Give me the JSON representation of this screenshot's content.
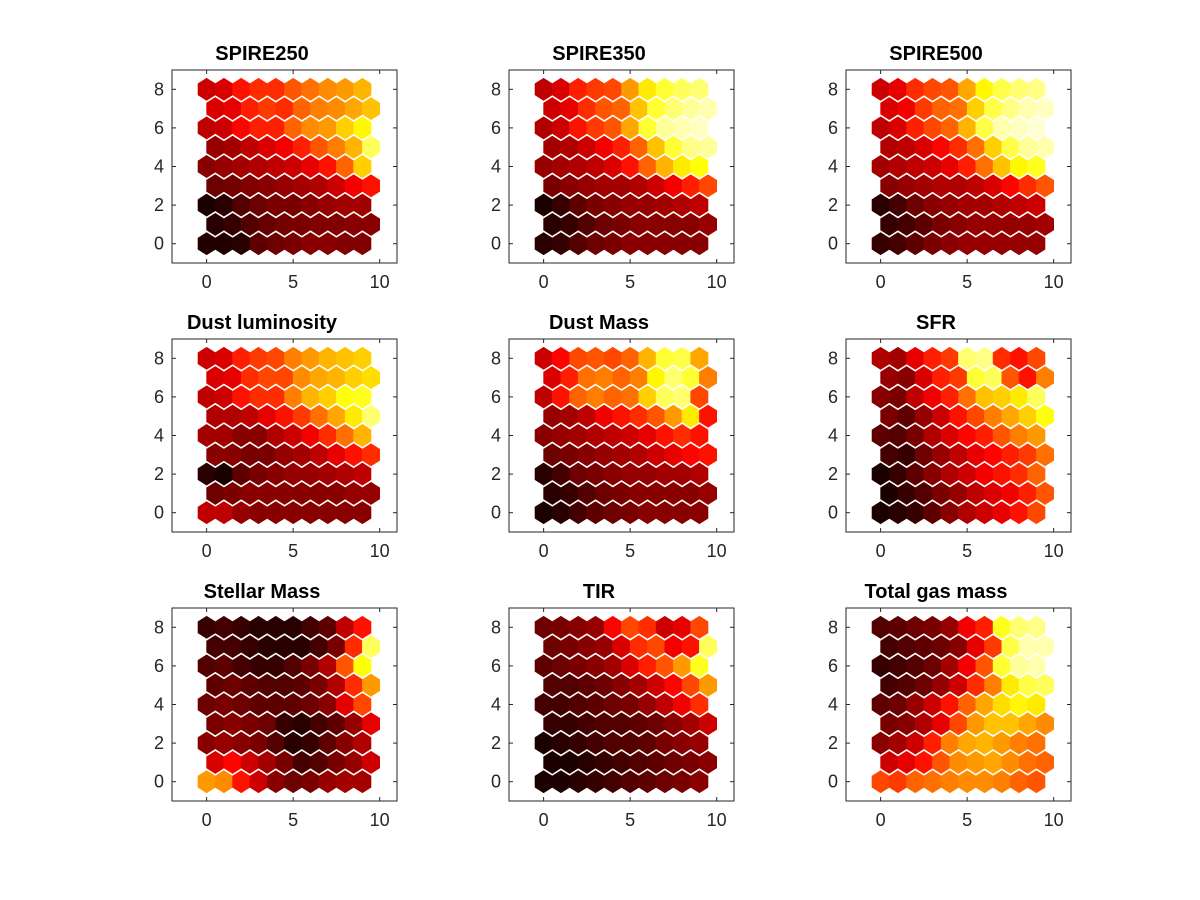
{
  "chart_data": [
    {
      "type": "heatmap",
      "title": "SPIRE250",
      "colormap": "hot",
      "xlim": [
        -2,
        11
      ],
      "ylim": [
        -1,
        9
      ],
      "xticks": [
        0,
        5,
        10
      ],
      "yticks": [
        0,
        2,
        4,
        6,
        8
      ],
      "values": [
        [
          0.05,
          0.05,
          0.06,
          0.14,
          0.16,
          0.18,
          0.2,
          0.2,
          0.19,
          0.19
        ],
        [
          0.06,
          0.08,
          0.12,
          0.15,
          0.17,
          0.18,
          0.19,
          0.19,
          0.2,
          0.2
        ],
        [
          0.04,
          0.06,
          0.12,
          0.16,
          0.18,
          0.18,
          0.2,
          0.22,
          0.24,
          0.24
        ],
        [
          0.16,
          0.17,
          0.19,
          0.2,
          0.22,
          0.24,
          0.26,
          0.3,
          0.36,
          0.4
        ],
        [
          0.2,
          0.22,
          0.24,
          0.26,
          0.28,
          0.3,
          0.34,
          0.4,
          0.52,
          0.68
        ],
        [
          0.22,
          0.24,
          0.28,
          0.32,
          0.36,
          0.42,
          0.5,
          0.56,
          0.64,
          0.84
        ],
        [
          0.28,
          0.3,
          0.38,
          0.42,
          0.42,
          0.52,
          0.58,
          0.6,
          0.68,
          0.74
        ],
        [
          0.32,
          0.34,
          0.42,
          0.46,
          0.44,
          0.52,
          0.56,
          0.58,
          0.62,
          0.66
        ],
        [
          0.3,
          0.32,
          0.4,
          0.44,
          0.44,
          0.5,
          0.54,
          0.58,
          0.6,
          0.64
        ]
      ]
    },
    {
      "type": "heatmap",
      "title": "SPIRE350",
      "colormap": "hot",
      "xlim": [
        -2,
        11
      ],
      "ylim": [
        -1,
        9
      ],
      "xticks": [
        0,
        5,
        10
      ],
      "yticks": [
        0,
        2,
        4,
        6,
        8
      ],
      "values": [
        [
          0.06,
          0.08,
          0.12,
          0.16,
          0.18,
          0.2,
          0.2,
          0.2,
          0.2,
          0.2
        ],
        [
          0.06,
          0.08,
          0.12,
          0.16,
          0.18,
          0.2,
          0.2,
          0.2,
          0.2,
          0.22
        ],
        [
          0.04,
          0.08,
          0.14,
          0.18,
          0.2,
          0.22,
          0.22,
          0.24,
          0.26,
          0.28
        ],
        [
          0.18,
          0.2,
          0.22,
          0.24,
          0.24,
          0.26,
          0.3,
          0.36,
          0.42,
          0.48
        ],
        [
          0.22,
          0.24,
          0.26,
          0.28,
          0.32,
          0.4,
          0.52,
          0.64,
          0.72,
          0.76
        ],
        [
          0.24,
          0.26,
          0.3,
          0.36,
          0.42,
          0.52,
          0.66,
          0.8,
          0.88,
          0.9
        ],
        [
          0.26,
          0.3,
          0.4,
          0.46,
          0.5,
          0.62,
          0.8,
          0.9,
          0.92,
          0.94
        ],
        [
          0.3,
          0.34,
          0.44,
          0.5,
          0.52,
          0.66,
          0.8,
          0.86,
          0.9,
          0.92
        ],
        [
          0.28,
          0.32,
          0.42,
          0.46,
          0.48,
          0.6,
          0.72,
          0.8,
          0.84,
          0.86
        ]
      ]
    },
    {
      "type": "heatmap",
      "title": "SPIRE500",
      "colormap": "hot",
      "xlim": [
        -2,
        11
      ],
      "ylim": [
        -1,
        9
      ],
      "xticks": [
        0,
        5,
        10
      ],
      "yticks": [
        0,
        2,
        4,
        6,
        8
      ],
      "values": [
        [
          0.08,
          0.1,
          0.14,
          0.18,
          0.2,
          0.22,
          0.22,
          0.22,
          0.22,
          0.22
        ],
        [
          0.08,
          0.1,
          0.14,
          0.18,
          0.2,
          0.22,
          0.22,
          0.22,
          0.22,
          0.24
        ],
        [
          0.06,
          0.1,
          0.16,
          0.2,
          0.22,
          0.24,
          0.24,
          0.26,
          0.28,
          0.3
        ],
        [
          0.2,
          0.22,
          0.24,
          0.26,
          0.26,
          0.28,
          0.32,
          0.38,
          0.44,
          0.5
        ],
        [
          0.24,
          0.26,
          0.28,
          0.3,
          0.34,
          0.42,
          0.54,
          0.66,
          0.74,
          0.78
        ],
        [
          0.26,
          0.28,
          0.32,
          0.38,
          0.44,
          0.54,
          0.68,
          0.82,
          0.9,
          0.92
        ],
        [
          0.28,
          0.32,
          0.42,
          0.48,
          0.52,
          0.64,
          0.82,
          0.92,
          0.94,
          0.96
        ],
        [
          0.32,
          0.36,
          0.46,
          0.52,
          0.54,
          0.68,
          0.82,
          0.88,
          0.92,
          0.94
        ],
        [
          0.3,
          0.34,
          0.44,
          0.48,
          0.5,
          0.62,
          0.74,
          0.82,
          0.86,
          0.88
        ]
      ]
    },
    {
      "type": "heatmap",
      "title": "Dust luminosity",
      "colormap": "hot",
      "xlim": [
        -2,
        11
      ],
      "ylim": [
        -1,
        9
      ],
      "xticks": [
        0,
        5,
        10
      ],
      "yticks": [
        0,
        2,
        4,
        6,
        8
      ],
      "values": [
        [
          0.28,
          0.28,
          0.22,
          0.2,
          0.2,
          0.2,
          0.2,
          0.2,
          0.2,
          0.2
        ],
        [
          0.16,
          0.18,
          0.2,
          0.2,
          0.2,
          0.2,
          0.2,
          0.2,
          0.22,
          0.22
        ],
        [
          0.06,
          0.04,
          0.14,
          0.18,
          0.2,
          0.22,
          0.22,
          0.24,
          0.26,
          0.28
        ],
        [
          0.2,
          0.2,
          0.18,
          0.18,
          0.22,
          0.24,
          0.28,
          0.34,
          0.4,
          0.44
        ],
        [
          0.24,
          0.24,
          0.2,
          0.2,
          0.26,
          0.3,
          0.36,
          0.44,
          0.54,
          0.64
        ],
        [
          0.26,
          0.26,
          0.28,
          0.34,
          0.4,
          0.46,
          0.54,
          0.62,
          0.72,
          0.86
        ],
        [
          0.28,
          0.3,
          0.4,
          0.44,
          0.44,
          0.56,
          0.64,
          0.68,
          0.76,
          0.78
        ],
        [
          0.32,
          0.34,
          0.44,
          0.48,
          0.48,
          0.58,
          0.62,
          0.64,
          0.68,
          0.7
        ],
        [
          0.3,
          0.32,
          0.42,
          0.46,
          0.48,
          0.56,
          0.6,
          0.64,
          0.66,
          0.68
        ]
      ]
    },
    {
      "type": "heatmap",
      "title": "Dust Mass",
      "colormap": "hot",
      "xlim": [
        -2,
        11
      ],
      "ylim": [
        -1,
        9
      ],
      "xticks": [
        0,
        5,
        10
      ],
      "yticks": [
        0,
        2,
        4,
        6,
        8
      ],
      "values": [
        [
          0.04,
          0.06,
          0.1,
          0.14,
          0.16,
          0.18,
          0.2,
          0.2,
          0.2,
          0.2
        ],
        [
          0.06,
          0.08,
          0.12,
          0.16,
          0.18,
          0.2,
          0.2,
          0.2,
          0.2,
          0.22
        ],
        [
          0.06,
          0.1,
          0.16,
          0.18,
          0.2,
          0.22,
          0.22,
          0.24,
          0.24,
          0.26
        ],
        [
          0.16,
          0.18,
          0.2,
          0.22,
          0.24,
          0.26,
          0.3,
          0.34,
          0.38,
          0.4
        ],
        [
          0.2,
          0.22,
          0.24,
          0.26,
          0.28,
          0.3,
          0.34,
          0.4,
          0.44,
          0.4
        ],
        [
          0.22,
          0.24,
          0.28,
          0.36,
          0.4,
          0.44,
          0.5,
          0.6,
          0.72,
          0.4
        ],
        [
          0.28,
          0.4,
          0.52,
          0.56,
          0.52,
          0.54,
          0.68,
          0.84,
          0.86,
          0.48
        ],
        [
          0.32,
          0.42,
          0.54,
          0.56,
          0.52,
          0.56,
          0.74,
          0.86,
          0.8,
          0.56
        ],
        [
          0.3,
          0.38,
          0.48,
          0.5,
          0.48,
          0.52,
          0.64,
          0.8,
          0.82,
          0.62
        ]
      ]
    },
    {
      "type": "heatmap",
      "title": "SFR",
      "colormap": "hot",
      "xlim": [
        -2,
        11
      ],
      "ylim": [
        -1,
        9
      ],
      "xticks": [
        0,
        5,
        10
      ],
      "yticks": [
        0,
        2,
        4,
        6,
        8
      ],
      "values": [
        [
          0.04,
          0.06,
          0.08,
          0.14,
          0.2,
          0.26,
          0.3,
          0.34,
          0.4,
          0.48
        ],
        [
          0.04,
          0.08,
          0.12,
          0.18,
          0.22,
          0.28,
          0.32,
          0.36,
          0.42,
          0.5
        ],
        [
          0.04,
          0.08,
          0.14,
          0.2,
          0.26,
          0.3,
          0.36,
          0.4,
          0.44,
          0.52
        ],
        [
          0.1,
          0.08,
          0.16,
          0.22,
          0.28,
          0.34,
          0.38,
          0.42,
          0.46,
          0.54
        ],
        [
          0.14,
          0.12,
          0.18,
          0.26,
          0.32,
          0.38,
          0.42,
          0.5,
          0.56,
          0.6
        ],
        [
          0.18,
          0.14,
          0.22,
          0.3,
          0.4,
          0.48,
          0.56,
          0.62,
          0.68,
          0.76
        ],
        [
          0.2,
          0.18,
          0.28,
          0.36,
          0.42,
          0.54,
          0.66,
          0.68,
          0.72,
          0.84
        ],
        [
          0.22,
          0.2,
          0.32,
          0.42,
          0.46,
          0.8,
          0.84,
          0.5,
          0.4,
          0.56
        ],
        [
          0.26,
          0.24,
          0.34,
          0.42,
          0.46,
          0.86,
          0.88,
          0.44,
          0.4,
          0.48
        ]
      ]
    },
    {
      "type": "heatmap",
      "title": "Stellar Mass",
      "colormap": "hot",
      "xlim": [
        -2,
        11
      ],
      "ylim": [
        -1,
        9
      ],
      "xticks": [
        0,
        5,
        10
      ],
      "yticks": [
        0,
        2,
        4,
        6,
        8
      ],
      "values": [
        [
          0.6,
          0.58,
          0.4,
          0.3,
          0.2,
          0.16,
          0.18,
          0.22,
          0.24,
          0.24
        ],
        [
          0.32,
          0.38,
          0.3,
          0.24,
          0.18,
          0.1,
          0.12,
          0.18,
          0.22,
          0.3
        ],
        [
          0.2,
          0.22,
          0.2,
          0.18,
          0.12,
          0.06,
          0.08,
          0.14,
          0.2,
          0.26
        ],
        [
          0.18,
          0.2,
          0.18,
          0.16,
          0.08,
          0.06,
          0.1,
          0.14,
          0.22,
          0.34
        ],
        [
          0.16,
          0.18,
          0.16,
          0.14,
          0.14,
          0.14,
          0.16,
          0.2,
          0.34,
          0.48
        ],
        [
          0.14,
          0.16,
          0.14,
          0.12,
          0.12,
          0.14,
          0.18,
          0.26,
          0.44,
          0.6
        ],
        [
          0.12,
          0.14,
          0.1,
          0.08,
          0.08,
          0.12,
          0.18,
          0.26,
          0.5,
          0.76
        ],
        [
          0.1,
          0.1,
          0.08,
          0.06,
          0.06,
          0.06,
          0.1,
          0.18,
          0.44,
          0.84
        ],
        [
          0.08,
          0.1,
          0.08,
          0.06,
          0.06,
          0.06,
          0.1,
          0.14,
          0.28,
          0.4
        ]
      ]
    },
    {
      "type": "heatmap",
      "title": "TIR",
      "colormap": "hot",
      "xlim": [
        -2,
        11
      ],
      "ylim": [
        -1,
        9
      ],
      "xticks": [
        0,
        5,
        10
      ],
      "yticks": [
        0,
        2,
        4,
        6,
        8
      ],
      "values": [
        [
          0.04,
          0.04,
          0.06,
          0.08,
          0.1,
          0.12,
          0.14,
          0.16,
          0.18,
          0.2
        ],
        [
          0.04,
          0.04,
          0.06,
          0.08,
          0.1,
          0.12,
          0.14,
          0.16,
          0.18,
          0.2
        ],
        [
          0.04,
          0.06,
          0.08,
          0.1,
          0.12,
          0.12,
          0.14,
          0.18,
          0.2,
          0.22
        ],
        [
          0.08,
          0.08,
          0.1,
          0.12,
          0.12,
          0.14,
          0.16,
          0.2,
          0.24,
          0.3
        ],
        [
          0.1,
          0.1,
          0.12,
          0.14,
          0.16,
          0.18,
          0.22,
          0.28,
          0.36,
          0.44
        ],
        [
          0.12,
          0.12,
          0.14,
          0.16,
          0.2,
          0.24,
          0.3,
          0.38,
          0.48,
          0.6
        ],
        [
          0.14,
          0.16,
          0.18,
          0.2,
          0.24,
          0.32,
          0.42,
          0.5,
          0.6,
          0.78
        ],
        [
          0.16,
          0.18,
          0.2,
          0.22,
          0.32,
          0.44,
          0.48,
          0.36,
          0.4,
          0.84
        ],
        [
          0.16,
          0.18,
          0.2,
          0.22,
          0.38,
          0.48,
          0.44,
          0.3,
          0.34,
          0.48
        ]
      ]
    },
    {
      "type": "heatmap",
      "title": "Total gas mass",
      "colormap": "hot",
      "xlim": [
        -2,
        11
      ],
      "ylim": [
        -1,
        9
      ],
      "xticks": [
        0,
        5,
        10
      ],
      "yticks": [
        0,
        2,
        4,
        6,
        8
      ],
      "values": [
        [
          0.48,
          0.46,
          0.52,
          0.54,
          0.56,
          0.58,
          0.58,
          0.56,
          0.52,
          0.5
        ],
        [
          0.3,
          0.34,
          0.4,
          0.5,
          0.58,
          0.6,
          0.62,
          0.58,
          0.54,
          0.52
        ],
        [
          0.2,
          0.24,
          0.3,
          0.42,
          0.56,
          0.62,
          0.64,
          0.6,
          0.56,
          0.54
        ],
        [
          0.18,
          0.2,
          0.26,
          0.34,
          0.48,
          0.6,
          0.66,
          0.66,
          0.62,
          0.58
        ],
        [
          0.14,
          0.16,
          0.22,
          0.3,
          0.4,
          0.52,
          0.62,
          0.7,
          0.74,
          0.72
        ],
        [
          0.1,
          0.12,
          0.16,
          0.22,
          0.3,
          0.44,
          0.56,
          0.72,
          0.82,
          0.84
        ],
        [
          0.08,
          0.1,
          0.12,
          0.16,
          0.24,
          0.36,
          0.5,
          0.8,
          0.9,
          0.92
        ],
        [
          0.1,
          0.12,
          0.14,
          0.16,
          0.2,
          0.34,
          0.46,
          0.82,
          0.92,
          0.92
        ],
        [
          0.12,
          0.14,
          0.16,
          0.18,
          0.22,
          0.36,
          0.42,
          0.78,
          0.86,
          0.88
        ]
      ]
    }
  ]
}
